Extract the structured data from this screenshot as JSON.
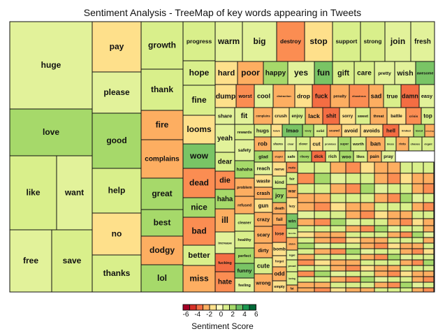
{
  "chart_data": {
    "type": "treemap",
    "title": "Sentiment Analysis - TreeMap of key words appearing in Tweets",
    "legend": {
      "title": "Sentiment Score",
      "ticks": [
        "-6",
        "-4",
        "-2",
        "0",
        "2",
        "4",
        "6"
      ],
      "colors": [
        "#a50026",
        "#d73027",
        "#f46d43",
        "#fdae61",
        "#fee08b",
        "#ffffbf",
        "#d9ef8b",
        "#a6d96a",
        "#66bd63",
        "#1a9850",
        "#006837"
      ]
    },
    "palette": {
      "-5": "#d73027",
      "-4": "#f46d43",
      "-3": "#fb8d52",
      "-2": "#fdae61",
      "-1": "#fee08b",
      "0": "#ffffbf",
      "1": "#e2f29a",
      "2": "#d9ef8b",
      "3": "#a6d96a",
      "4": "#79c465",
      "5": "#4eac5b",
      "6": "#1a9850"
    },
    "words": [
      {
        "word": "huge",
        "score": 1
      },
      {
        "word": "love",
        "score": 3
      },
      {
        "word": "like",
        "score": 2
      },
      {
        "word": "want",
        "score": 1
      },
      {
        "word": "free",
        "score": 1
      },
      {
        "word": "save",
        "score": 2
      },
      {
        "word": "pay",
        "score": -1
      },
      {
        "word": "please",
        "score": 1
      },
      {
        "word": "good",
        "score": 3
      },
      {
        "word": "help",
        "score": 2
      },
      {
        "word": "no",
        "score": -1
      },
      {
        "word": "thanks",
        "score": 2
      },
      {
        "word": "growth",
        "score": 2
      },
      {
        "word": "thank",
        "score": 2
      },
      {
        "word": "fire",
        "score": -2
      },
      {
        "word": "complains",
        "score": -2
      },
      {
        "word": "great",
        "score": 3
      },
      {
        "word": "best",
        "score": 3
      },
      {
        "word": "dodgy",
        "score": -2
      },
      {
        "word": "lol",
        "score": 3
      },
      {
        "word": "progress",
        "score": 2
      },
      {
        "word": "hope",
        "score": 2
      },
      {
        "word": "fine",
        "score": 2
      },
      {
        "word": "looms",
        "score": -1
      },
      {
        "word": "wow",
        "score": 4
      },
      {
        "word": "dead",
        "score": -3
      },
      {
        "word": "nice",
        "score": 3
      },
      {
        "word": "bad",
        "score": -3
      },
      {
        "word": "better",
        "score": 2
      },
      {
        "word": "miss",
        "score": -2
      },
      {
        "word": "warm",
        "score": 1
      },
      {
        "word": "big",
        "score": 1
      },
      {
        "word": "destroy",
        "score": -3
      },
      {
        "word": "stop",
        "score": -1
      },
      {
        "word": "support",
        "score": 2
      },
      {
        "word": "strong",
        "score": 2
      },
      {
        "word": "join",
        "score": 1
      },
      {
        "word": "fresh",
        "score": 1
      },
      {
        "word": "hard",
        "score": -1
      },
      {
        "word": "poor",
        "score": -2
      },
      {
        "word": "happy",
        "score": 3
      },
      {
        "word": "yes",
        "score": 1
      },
      {
        "word": "fun",
        "score": 4
      },
      {
        "word": "gift",
        "score": 2
      },
      {
        "word": "care",
        "score": 2
      },
      {
        "word": "pretty",
        "score": 1
      },
      {
        "word": "wish",
        "score": 1
      },
      {
        "word": "awesome",
        "score": 4
      },
      {
        "word": "dump",
        "score": -1
      },
      {
        "word": "worst",
        "score": -3
      },
      {
        "word": "cool",
        "score": 1
      },
      {
        "word": "distraction",
        "score": -2
      },
      {
        "word": "drop",
        "score": -1
      },
      {
        "word": "fuck",
        "score": -4
      },
      {
        "word": "penalty",
        "score": -2
      },
      {
        "word": "disastrous",
        "score": -3
      },
      {
        "word": "sad",
        "score": -2
      },
      {
        "word": "true",
        "score": 2
      },
      {
        "word": "damn",
        "score": -4
      },
      {
        "word": "easy",
        "score": 1
      },
      {
        "word": "share",
        "score": 1
      },
      {
        "word": "fit",
        "score": 1
      },
      {
        "word": "complains",
        "score": -2
      },
      {
        "word": "crush",
        "score": -1
      },
      {
        "word": "enjoy",
        "score": 2
      },
      {
        "word": "lack",
        "score": -2
      },
      {
        "word": "shit",
        "score": -4
      },
      {
        "word": "sorry",
        "score": -1
      },
      {
        "word": "sweet",
        "score": 2
      },
      {
        "word": "threat",
        "score": -2
      },
      {
        "word": "battle",
        "score": -1
      },
      {
        "word": "crisis",
        "score": -3
      },
      {
        "word": "top",
        "score": 2
      },
      {
        "word": "yeah",
        "score": 1
      },
      {
        "word": "dear",
        "score": 2
      },
      {
        "word": "die",
        "score": -3
      },
      {
        "word": "haha",
        "score": 3
      },
      {
        "word": "ill",
        "score": -2
      },
      {
        "word": "increase",
        "score": 1
      },
      {
        "word": "fucking",
        "score": -4
      },
      {
        "word": "hate",
        "score": -3
      },
      {
        "word": "rewards",
        "score": 2
      },
      {
        "word": "safety",
        "score": 1
      },
      {
        "word": "hahaha",
        "score": 3
      },
      {
        "word": "problem",
        "score": -2
      },
      {
        "word": "refused",
        "score": -2
      },
      {
        "word": "cleaner",
        "score": 2
      },
      {
        "word": "healthy",
        "score": 2
      },
      {
        "word": "perfect",
        "score": 3
      },
      {
        "word": "funny",
        "score": 4
      },
      {
        "word": "feeling",
        "score": 1
      },
      {
        "word": "hugs",
        "score": 2
      },
      {
        "word": "leave",
        "score": -1
      },
      {
        "word": "lmao",
        "score": 4
      },
      {
        "word": "lovely",
        "score": 3
      },
      {
        "word": "solid",
        "score": 2
      },
      {
        "word": "scared",
        "score": -2
      },
      {
        "word": "avoid",
        "score": -1
      },
      {
        "word": "avoids",
        "score": -1
      },
      {
        "word": "hell",
        "score": -4
      },
      {
        "word": "limited",
        "score": -1
      },
      {
        "word": "loved",
        "score": 3
      },
      {
        "word": "missing",
        "score": -2
      },
      {
        "word": "rob",
        "score": -2
      },
      {
        "word": "shares",
        "score": 1
      },
      {
        "word": "clear",
        "score": 1
      },
      {
        "word": "clever",
        "score": 2
      },
      {
        "word": "cut",
        "score": -1
      },
      {
        "word": "promises",
        "score": 1
      },
      {
        "word": "super",
        "score": 3
      },
      {
        "word": "worth",
        "score": 2
      },
      {
        "word": "ban",
        "score": -2
      },
      {
        "word": "bless",
        "score": 2
      },
      {
        "word": "riots",
        "score": -2
      },
      {
        "word": "chance",
        "score": 2
      },
      {
        "word": "elegant",
        "score": 2
      },
      {
        "word": "glad",
        "score": 3
      },
      {
        "word": "stupid",
        "score": -2
      },
      {
        "word": "safe",
        "score": 1
      },
      {
        "word": "classy",
        "score": 3
      },
      {
        "word": "dick",
        "score": -4
      },
      {
        "word": "rich",
        "score": 2
      },
      {
        "word": "woo",
        "score": 3
      },
      {
        "word": "likes",
        "score": 2
      },
      {
        "word": "pain",
        "score": -2
      },
      {
        "word": "pray",
        "score": 1
      },
      {
        "word": "reach",
        "score": 1
      },
      {
        "word": "waste",
        "score": -1
      },
      {
        "word": "crash",
        "score": -2
      },
      {
        "word": "gun",
        "score": -1
      },
      {
        "word": "crazy",
        "score": -2
      },
      {
        "word": "scary",
        "score": -2
      },
      {
        "word": "dirty",
        "score": -2
      },
      {
        "word": "cute",
        "score": 2
      },
      {
        "word": "wrong",
        "score": -2
      },
      {
        "word": "nerve",
        "score": -1
      },
      {
        "word": "kind",
        "score": 2
      },
      {
        "word": "joy",
        "score": 3
      },
      {
        "word": "death",
        "score": -2
      },
      {
        "word": "fail",
        "score": -2
      },
      {
        "word": "lose",
        "score": -3
      },
      {
        "word": "bomb",
        "score": -1
      },
      {
        "word": "forget",
        "score": -1
      },
      {
        "word": "odd",
        "score": -2
      },
      {
        "word": "empty",
        "score": -1
      },
      {
        "word": "nuts",
        "score": -3
      },
      {
        "word": "fair",
        "score": 2
      },
      {
        "word": "war",
        "score": -2
      },
      {
        "word": "lazy",
        "score": -1
      },
      {
        "word": "win",
        "score": 4
      },
      {
        "word": "favorite",
        "score": 2
      },
      {
        "word": "stolen",
        "score": -2
      },
      {
        "word": "legal",
        "score": 1
      },
      {
        "word": "proud",
        "score": 2
      },
      {
        "word": "loving",
        "score": 2
      },
      {
        "word": "fat",
        "score": -2
      },
      {
        "word": "kill",
        "score": -3
      },
      {
        "word": "fight",
        "score": -1
      },
      {
        "word": "stuck",
        "score": -2
      },
      {
        "word": "sick",
        "score": -2
      },
      {
        "word": "honest",
        "score": 2
      },
      {
        "word": "smile",
        "score": 2
      },
      {
        "word": "freedom",
        "score": 2
      },
      {
        "word": "hurt",
        "score": -2
      },
      {
        "word": "died",
        "score": -3
      },
      {
        "word": "lucky",
        "score": 3
      },
      {
        "word": "wish",
        "score": 1
      }
    ]
  }
}
